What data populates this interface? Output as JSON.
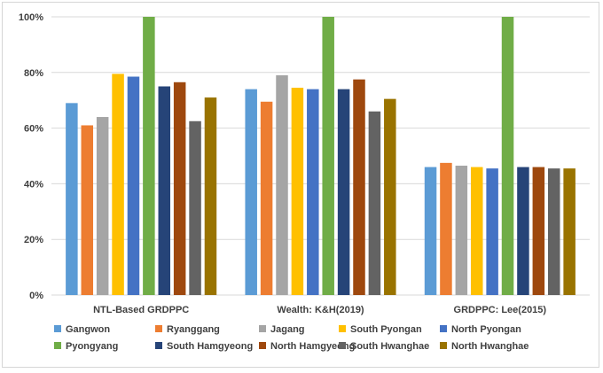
{
  "chart_data": {
    "type": "bar",
    "title": "",
    "xlabel": "",
    "ylabel": "",
    "ylim": [
      0,
      100
    ],
    "yticks": [
      0,
      20,
      40,
      60,
      80,
      100
    ],
    "ytick_labels": [
      "0%",
      "20%",
      "40%",
      "60%",
      "80%",
      "100%"
    ],
    "grid": true,
    "legend_position": "bottom",
    "categories": [
      "NTL-Based GRDPPC",
      "Wealth: K&H(2019)",
      "GRDPPC: Lee(2015)"
    ],
    "series": [
      {
        "name": "Gangwon",
        "color": "#5b9bd5",
        "values": [
          69,
          74,
          46
        ]
      },
      {
        "name": "Ryanggang",
        "color": "#ed7d31",
        "values": [
          61,
          69.5,
          47.5
        ]
      },
      {
        "name": "Jagang",
        "color": "#a5a5a5",
        "values": [
          64,
          79,
          46.5
        ]
      },
      {
        "name": "South Pyongan",
        "color": "#ffc000",
        "values": [
          79.5,
          74.5,
          46
        ]
      },
      {
        "name": "North Pyongan",
        "color": "#4472c4",
        "values": [
          78.5,
          74,
          45.5
        ]
      },
      {
        "name": "Pyongyang",
        "color": "#70ad47",
        "values": [
          100,
          100,
          100
        ]
      },
      {
        "name": "South Hamgyeong",
        "color": "#264478",
        "values": [
          75,
          74,
          46
        ]
      },
      {
        "name": "North Hamgyeong",
        "color": "#9e480e",
        "values": [
          76.5,
          77.5,
          46
        ]
      },
      {
        "name": "South Hwanghae",
        "color": "#636363",
        "values": [
          62.5,
          66,
          45.5
        ]
      },
      {
        "name": "North Hwanghae",
        "color": "#997300",
        "values": [
          71,
          70.5,
          45.5
        ]
      }
    ]
  }
}
